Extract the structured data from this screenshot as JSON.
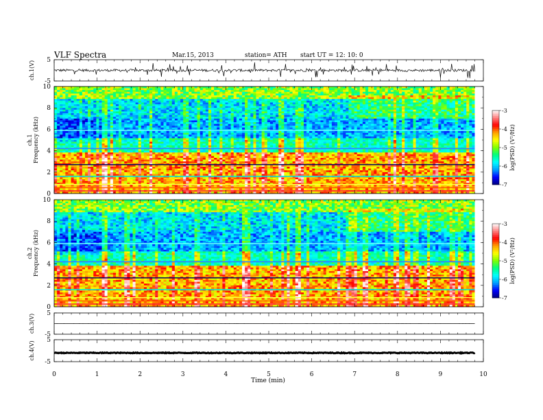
{
  "header": {
    "title": "VLF  Spectra",
    "date": "Mar.15, 2013",
    "station": "station= ATH",
    "start": "start  UT  =    12: 10: 0"
  },
  "chart_data": [
    {
      "type": "line",
      "name": "ch1-waveform",
      "ylabel": "ch.1(V)",
      "ytick_labels": [
        "5",
        "-5"
      ],
      "ylim": [
        -5,
        5
      ],
      "baseline": 0,
      "noise_amplitude": 1.2,
      "spike_amplitude": 3.5
    },
    {
      "type": "heatmap",
      "name": "ch1-spectrogram",
      "ylabel": "ch.1\nFrequency  (kHz)",
      "ylabel_lines": [
        "ch.1",
        "Frequency  (kHz)"
      ],
      "ytick_labels": [
        "0",
        "2",
        "4",
        "6",
        "8",
        "10"
      ],
      "ylim": [
        0,
        10
      ],
      "xlim": [
        0,
        9.8
      ],
      "colorbar": {
        "label": "log(PSD) (V²/Hz)",
        "tick_labels": [
          "-3",
          "-4",
          "-5",
          "-6",
          "-7"
        ],
        "range": [
          -7,
          -3
        ]
      },
      "step_time_min": [
        1.2,
        6.85
      ]
    },
    {
      "type": "heatmap",
      "name": "ch2-spectrogram",
      "ylabel": "ch.2\nFrequency  (kHz)",
      "ylabel_lines": [
        "ch.2",
        "Frequency  (kHz)"
      ],
      "ytick_labels": [
        "0",
        "2",
        "4",
        "6",
        "8",
        "10"
      ],
      "ylim": [
        0,
        10
      ],
      "xlim": [
        0,
        9.8
      ],
      "colorbar": {
        "label": "log(PSD) (V²/Hz)",
        "tick_labels": [
          "-3",
          "-4",
          "-5",
          "-6",
          "-7"
        ],
        "range": [
          -7,
          -3
        ]
      },
      "step_time_min": [
        1.2,
        6.85
      ]
    },
    {
      "type": "line",
      "name": "ch3-waveform",
      "ylabel": "ch.3(V)",
      "ytick_labels": [
        "5",
        "-5"
      ],
      "ylim": [
        -5,
        5
      ],
      "baseline": 0,
      "noise_amplitude": 0.05
    },
    {
      "type": "line",
      "name": "ch4-waveform",
      "ylabel": "ch.4(V)",
      "ytick_labels": [
        "5",
        "-5"
      ],
      "ylim": [
        -5,
        5
      ],
      "baseline": -1,
      "noise_amplitude": 0.35
    }
  ],
  "xaxis": {
    "label": "Time  (min)",
    "tick_labels": [
      "0",
      "1",
      "2",
      "3",
      "4",
      "5",
      "6",
      "7",
      "8",
      "9",
      "10"
    ],
    "xlim": [
      0,
      10
    ],
    "data_end": 9.8
  },
  "colors": {
    "colormap": [
      "#000080",
      "#0000ff",
      "#00a0ff",
      "#00ffff",
      "#00ff80",
      "#80ff00",
      "#ffff00",
      "#ffa000",
      "#ff0000",
      "#ff8080",
      "#ffffff"
    ]
  }
}
